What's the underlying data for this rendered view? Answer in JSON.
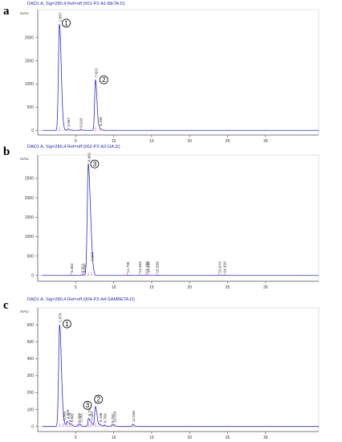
{
  "chart_data": [
    {
      "type": "line",
      "panel": "a",
      "header": "DAD1 A, Sig=280,4 Ref=off (001-P2-A1-BETA.D)",
      "unit": "mAU",
      "xlim": [
        0,
        37
      ],
      "ylim": [
        -100,
        2600
      ],
      "xticks": [
        5,
        10,
        15,
        20,
        25,
        30
      ],
      "yticks": [
        0,
        500,
        1000,
        1500,
        2000
      ],
      "peaks": [
        {
          "rt": 2.857,
          "height": 2290,
          "width": 0.13,
          "label": "2.857"
        },
        {
          "rt": 3.987,
          "height": 25,
          "width": 0.12,
          "label": "3.987"
        },
        {
          "rt": 5.628,
          "height": 12,
          "width": 0.12,
          "label": "5.628"
        },
        {
          "rt": 7.602,
          "height": 1090,
          "width": 0.11,
          "label": "7.602"
        },
        {
          "rt": 8.168,
          "height": 40,
          "width": 0.12,
          "label": "8.168"
        }
      ],
      "markers": [
        {
          "text": "1",
          "rt": 3.75,
          "y": 2310
        },
        {
          "text": "2",
          "rt": 8.7,
          "y": 1090
        }
      ]
    },
    {
      "type": "line",
      "panel": "b",
      "header": "DAD1 A, Sig=280,4 Ref=off (002-P2-A2-GA.D)",
      "unit": "mAU",
      "xlim": [
        0,
        37
      ],
      "ylim": [
        -150,
        3100
      ],
      "xticks": [
        5,
        10,
        15,
        20,
        25,
        30
      ],
      "yticks": [
        0,
        500,
        1000,
        1500,
        2000,
        2500
      ],
      "peaks": [
        {
          "rt": 4.384,
          "height": 8,
          "width": 0.12,
          "label": "4.384"
        },
        {
          "rt": 5.822,
          "height": 10,
          "width": 0.12,
          "label": "5.822"
        },
        {
          "rt": 6.097,
          "height": 10,
          "width": 0.12,
          "label": "6.097"
        },
        {
          "rt": 6.662,
          "height": 2870,
          "width": 0.14,
          "label": "6.662"
        },
        {
          "rt": 7.064,
          "height": 300,
          "width": 0.12,
          "label": "7.064"
        },
        {
          "rt": 11.795,
          "height": 8,
          "width": 0.12,
          "label": "11.795"
        },
        {
          "rt": 13.394,
          "height": 8,
          "width": 0.12,
          "label": "13.394"
        },
        {
          "rt": 14.266,
          "height": 8,
          "width": 0.12,
          "label": "14.266"
        },
        {
          "rt": 14.488,
          "height": 8,
          "width": 0.12,
          "label": "14.488"
        },
        {
          "rt": 15.658,
          "height": 8,
          "width": 0.12,
          "label": "15.658"
        },
        {
          "rt": 23.873,
          "height": 5,
          "width": 0.12,
          "label": "23.873"
        },
        {
          "rt": 24.55,
          "height": 5,
          "width": 0.12,
          "label": "24.550"
        }
      ],
      "markers": [
        {
          "text": "3",
          "rt": 7.5,
          "y": 2870
        }
      ]
    },
    {
      "type": "line",
      "panel": "c",
      "header": "DAD1 A, Sig=280,4 Ref=off (004-P2-A4-SAMBETA.D)",
      "unit": "mAU",
      "xlim": [
        0,
        37
      ],
      "ylim": [
        -30,
        700
      ],
      "xticks": [
        5,
        10,
        15,
        20,
        25,
        30
      ],
      "yticks": [
        0,
        100,
        200,
        300,
        400,
        500,
        600
      ],
      "peaks": [
        {
          "rt": 2.879,
          "height": 600,
          "width": 0.13,
          "label": "2.879"
        },
        {
          "rt": 3.366,
          "height": 20,
          "width": 0.1,
          "label": "3.366"
        },
        {
          "rt": 3.869,
          "height": 30,
          "width": 0.1,
          "label": "3.869"
        },
        {
          "rt": 4.173,
          "height": 12,
          "width": 0.1,
          "label": "4.173"
        },
        {
          "rt": 4.441,
          "height": 10,
          "width": 0.1,
          "label": "4.441"
        },
        {
          "rt": 5.334,
          "height": 10,
          "width": 0.1,
          "label": "5.334"
        },
        {
          "rt": 5.581,
          "height": 10,
          "width": 0.1,
          "label": "5.581"
        },
        {
          "rt": 6.7,
          "height": 48,
          "width": 0.1,
          "label": "6.700"
        },
        {
          "rt": 7.052,
          "height": 20,
          "width": 0.1,
          "label": "7.052"
        },
        {
          "rt": 7.604,
          "height": 118,
          "width": 0.11,
          "label": "7.604"
        },
        {
          "rt": 8.198,
          "height": 12,
          "width": 0.1,
          "label": "8.198"
        },
        {
          "rt": 8.769,
          "height": 8,
          "width": 0.1,
          "label": "8.769"
        },
        {
          "rt": 9.782,
          "height": 8,
          "width": 0.1,
          "label": "9.782"
        },
        {
          "rt": 10.028,
          "height": 8,
          "width": 0.1,
          "label": "10.028"
        },
        {
          "rt": 12.538,
          "height": 12,
          "width": 0.1,
          "label": "12.538"
        }
      ],
      "markers": [
        {
          "text": "1",
          "rt": 3.85,
          "y": 605
        },
        {
          "text": "3",
          "rt": 6.55,
          "y": 125
        },
        {
          "text": "2",
          "rt": 8.0,
          "y": 160
        }
      ]
    }
  ]
}
